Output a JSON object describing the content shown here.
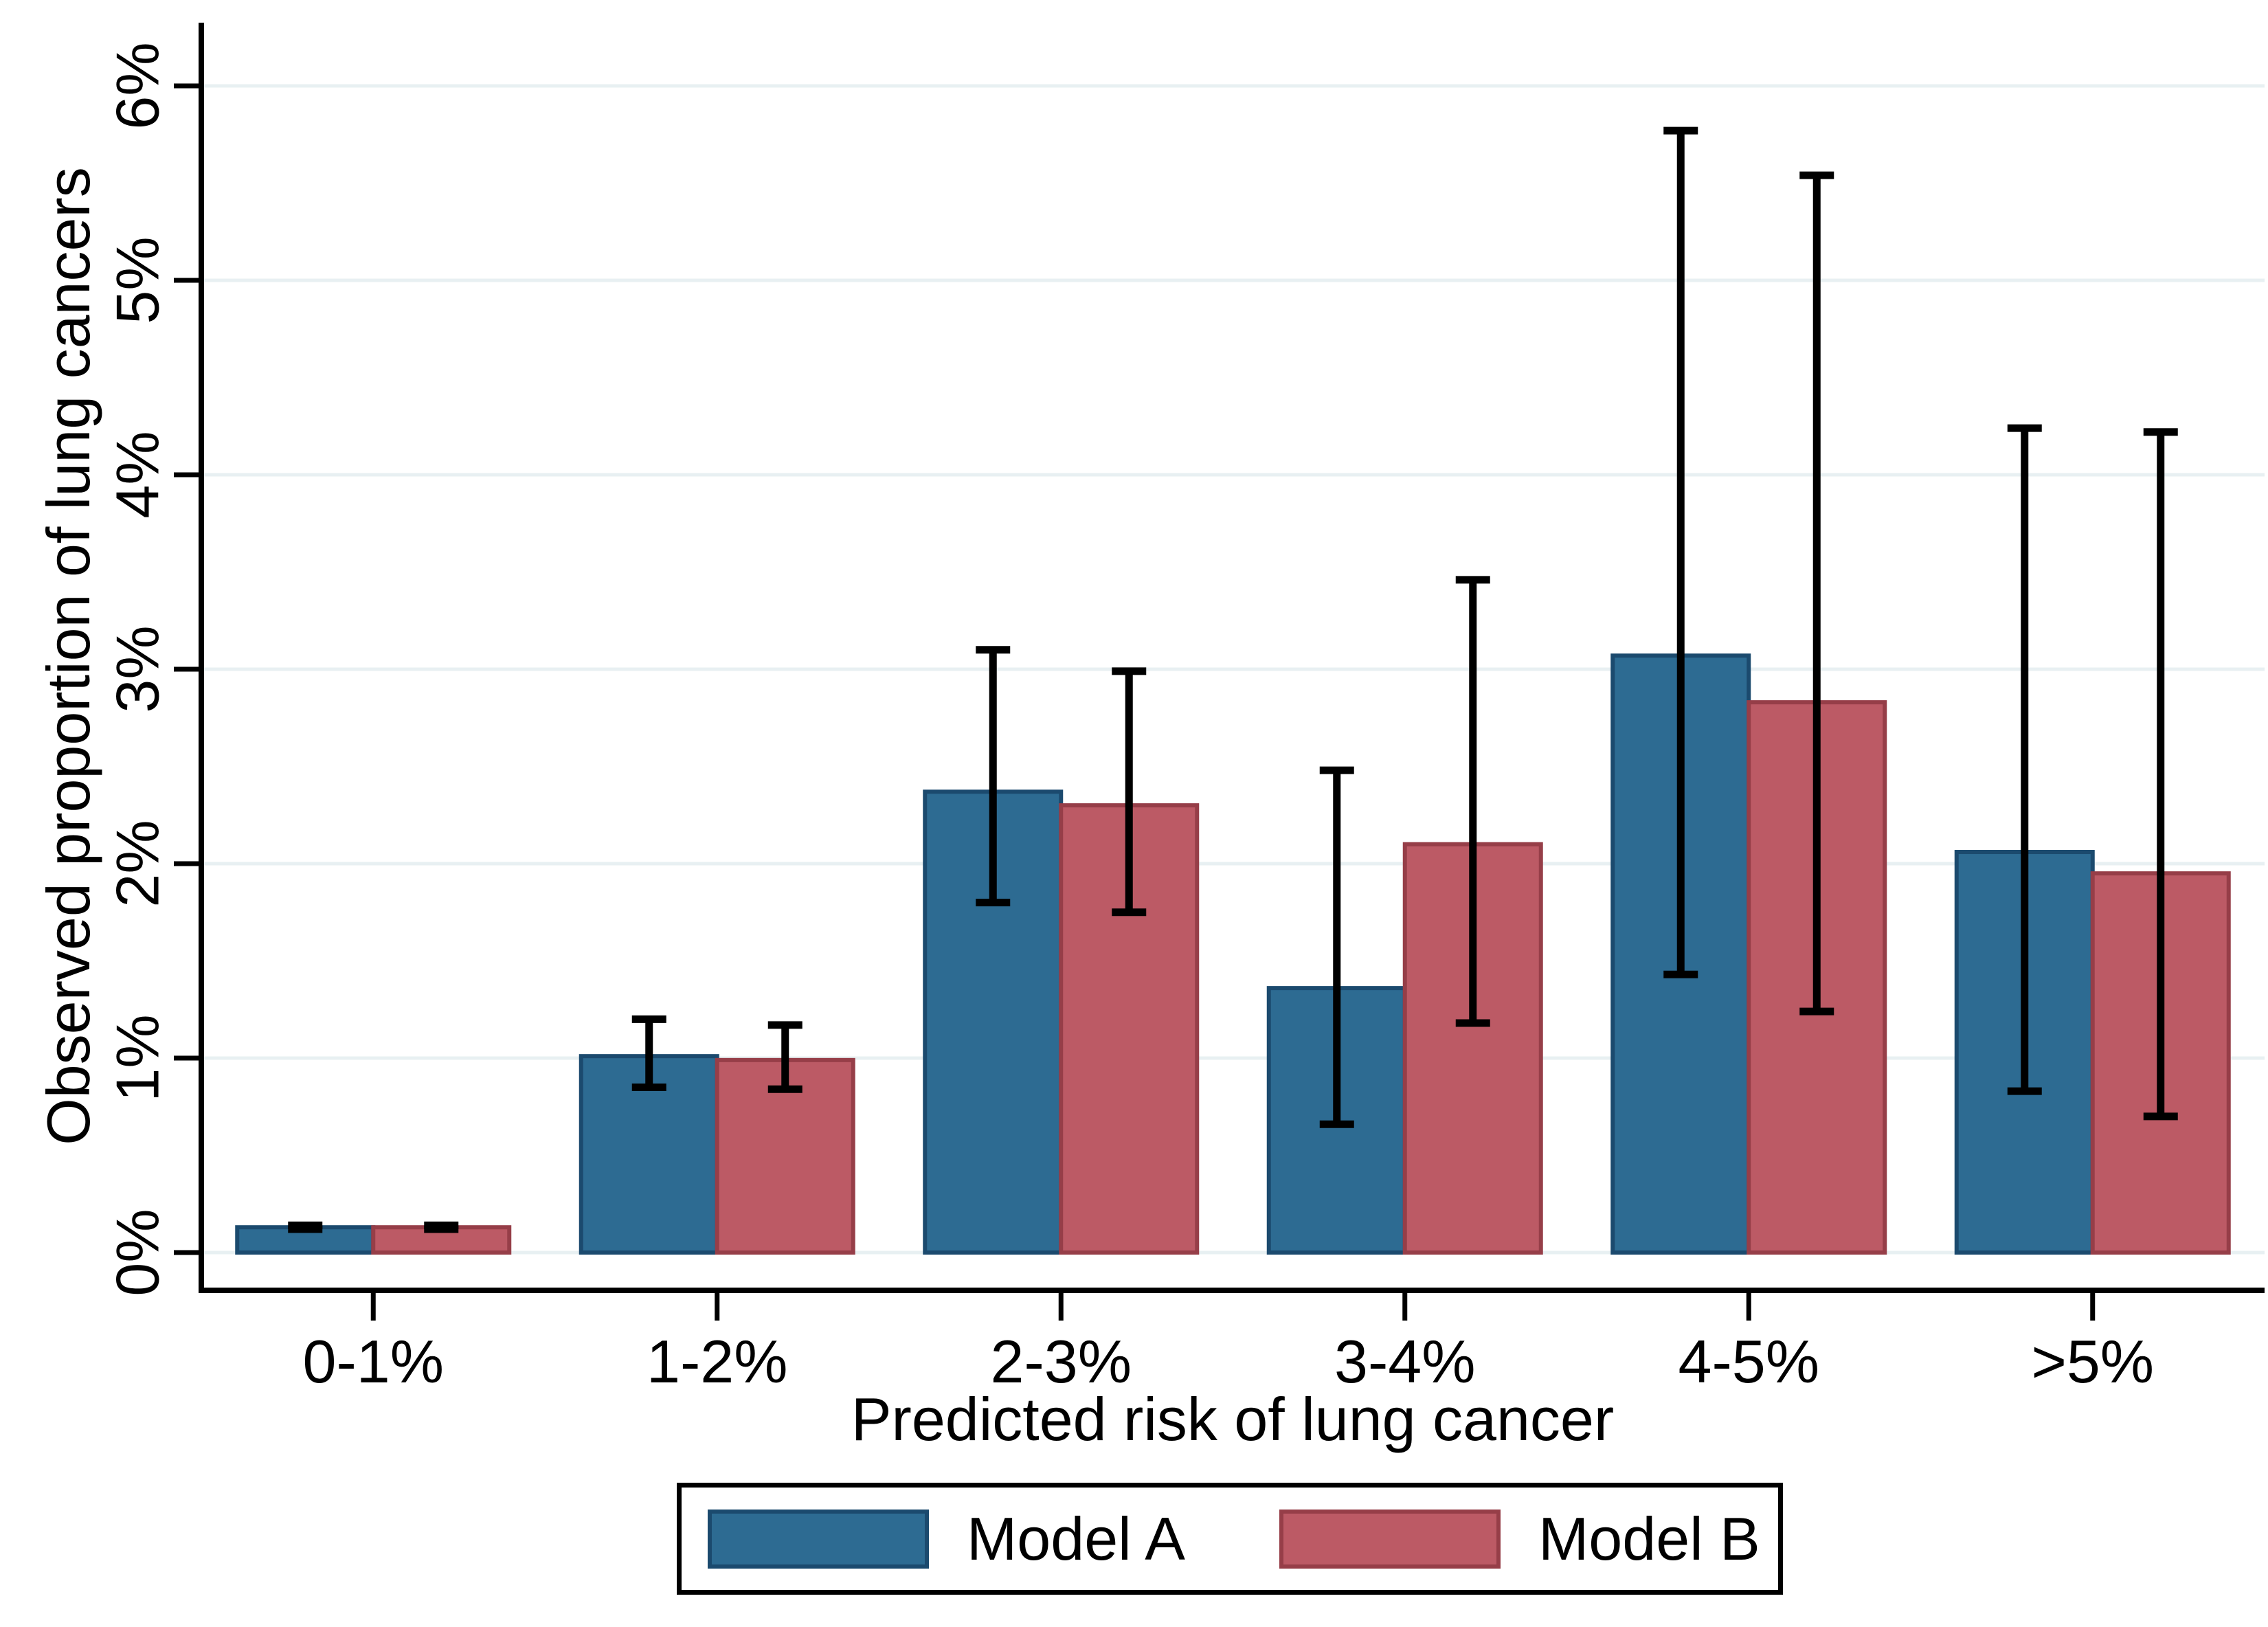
{
  "chart_data": {
    "type": "bar",
    "title": "",
    "xlabel": "Predicted risk of lung cancer",
    "ylabel": "Observed proportion of lung cancers",
    "categories": [
      "0-1%",
      "1-2%",
      "2-3%",
      "3-4%",
      "4-5%",
      ">5%"
    ],
    "y_tick_labels": [
      "0%",
      "1%",
      "2%",
      "3%",
      "4%",
      "5%",
      "6%"
    ],
    "y_tick_values": [
      0,
      1,
      2,
      3,
      4,
      5,
      6
    ],
    "ylim": [
      0,
      6.3
    ],
    "grid": true,
    "legend_position": "bottom",
    "error_bars": "95% CI",
    "series": [
      {
        "name": "Model A",
        "fill": "#2d6b92",
        "border": "#1b4a6e",
        "values": [
          0.13,
          1.01,
          2.37,
          1.36,
          3.07,
          2.06
        ],
        "ci_low": [
          0.12,
          0.85,
          1.8,
          0.66,
          1.43,
          0.83
        ],
        "ci_high": [
          0.14,
          1.2,
          3.1,
          2.48,
          5.77,
          4.24
        ]
      },
      {
        "name": "Model B",
        "fill": "#bc5a65",
        "border": "#963e48",
        "values": [
          0.13,
          0.99,
          2.3,
          2.1,
          2.83,
          1.95
        ],
        "ci_low": [
          0.12,
          0.84,
          1.75,
          1.18,
          1.24,
          0.7
        ],
        "ci_high": [
          0.14,
          1.17,
          2.99,
          3.46,
          5.54,
          4.22
        ]
      }
    ],
    "colors": {
      "gridline": "#e8f0f2",
      "axis": "#000000",
      "error_bar": "#000000",
      "background": "#ffffff"
    }
  }
}
